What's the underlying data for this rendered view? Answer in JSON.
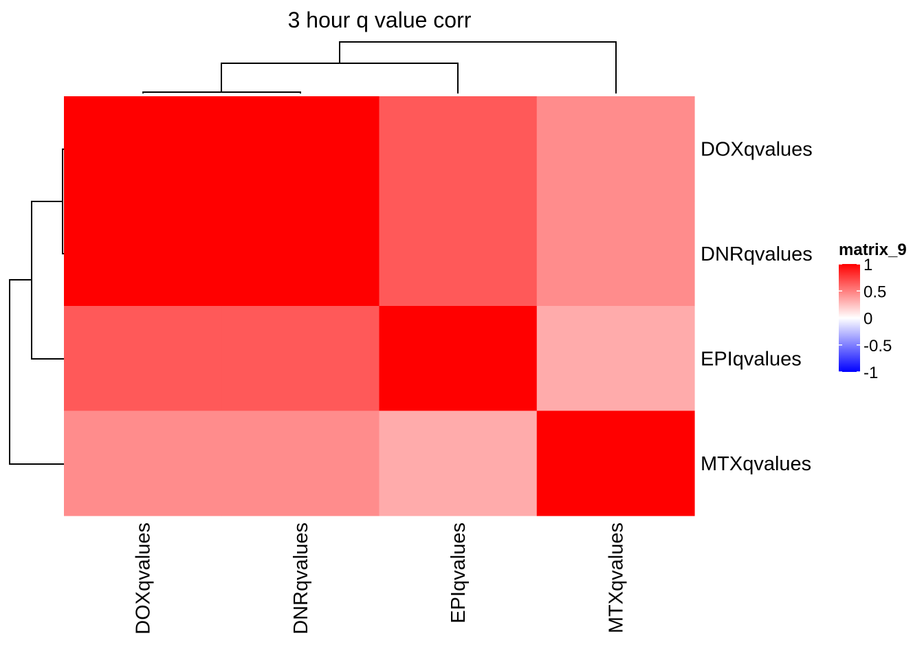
{
  "chart_data": {
    "type": "heatmap",
    "title": "3 hour q value corr",
    "rows": [
      "DOXqvalues",
      "DNRqvalues",
      "EPIqvalues",
      "MTXqvalues"
    ],
    "columns": [
      "DOXqvalues",
      "DNRqvalues",
      "EPIqvalues",
      "MTXqvalues"
    ],
    "values": [
      [
        1.0,
        1.0,
        0.65,
        0.45
      ],
      [
        1.0,
        1.0,
        0.65,
        0.45
      ],
      [
        0.65,
        0.65,
        1.0,
        0.33
      ],
      [
        0.45,
        0.45,
        0.33,
        1.0
      ]
    ],
    "legend": {
      "title": "matrix_9",
      "ticks": [
        "1",
        "0.5",
        "0",
        "-0.5",
        "-1"
      ],
      "range": [
        -1,
        1
      ],
      "colors": {
        "low": "#0000FF",
        "mid": "#FFFFFF",
        "high": "#FF0000"
      },
      "placement": "right"
    },
    "row_dendrogram": "left",
    "column_dendrogram": "top"
  }
}
